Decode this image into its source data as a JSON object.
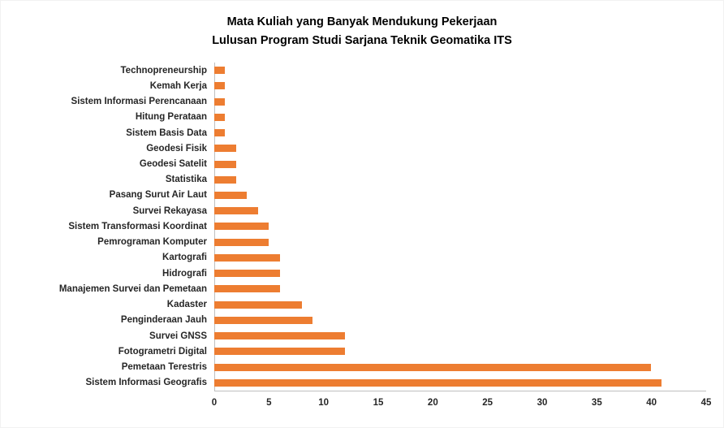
{
  "chart_data": {
    "type": "bar",
    "orientation": "horizontal",
    "title_lines": [
      "Mata Kuliah yang Banyak Mendukung Pekerjaan",
      "Lulusan Program Studi Sarjana Teknik Geomatika ITS"
    ],
    "categories": [
      "Technopreneurship",
      "Kemah Kerja",
      "Sistem Informasi Perencanaan",
      "Hitung Perataan",
      "Sistem Basis Data",
      "Geodesi Fisik",
      "Geodesi Satelit",
      "Statistika",
      "Pasang Surut Air Laut",
      "Survei Rekayasa",
      "Sistem Transformasi Koordinat",
      "Pemrograman Komputer",
      "Kartografi",
      "Hidrografi",
      "Manajemen Survei dan Pemetaan",
      "Kadaster",
      "Penginderaan Jauh",
      "Survei GNSS",
      "Fotogrametri Digital",
      "Pemetaan Terestris",
      "Sistem Informasi Geografis"
    ],
    "values": [
      1,
      1,
      1,
      1,
      1,
      2,
      2,
      2,
      3,
      4,
      5,
      5,
      6,
      6,
      6,
      8,
      9,
      12,
      12,
      40,
      41
    ],
    "xlabel": "",
    "ylabel": "",
    "xlim": [
      0,
      45
    ],
    "xticks": [
      0,
      5,
      10,
      15,
      20,
      25,
      30,
      35,
      40,
      45
    ],
    "bar_color": "#ED7D31",
    "axis_color": "#BFBFBF",
    "grid": false,
    "legend": "none"
  }
}
